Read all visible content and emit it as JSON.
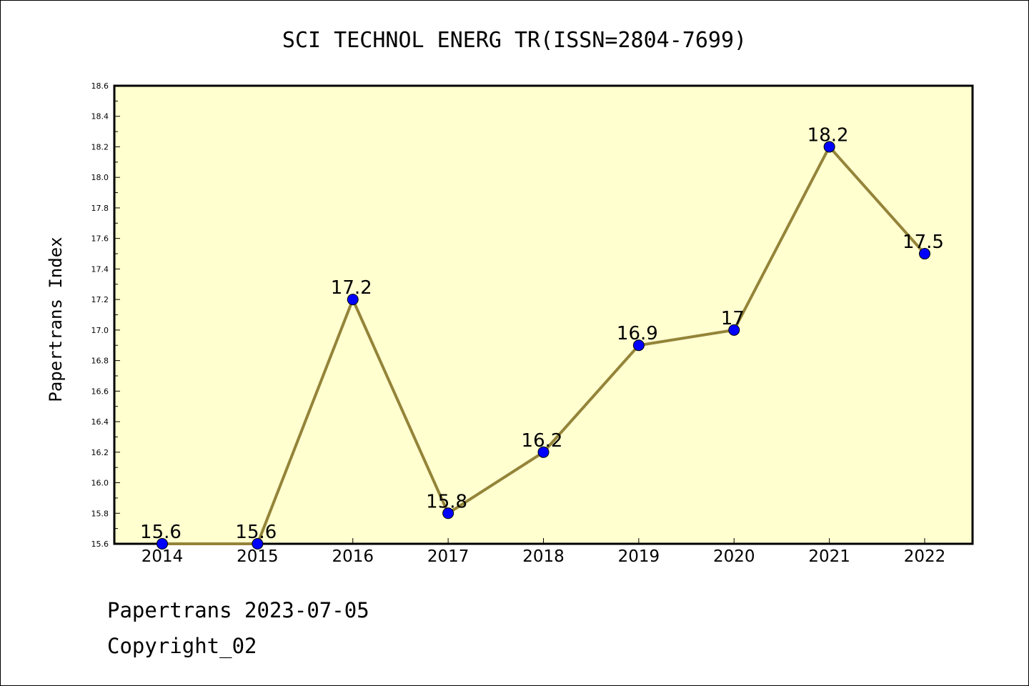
{
  "chart_data": {
    "type": "line",
    "title": "SCI TECHNOL ENERG TR(ISSN=2804-7699)",
    "xlabel": "",
    "ylabel": "Papertrans Index",
    "categories": [
      "2014",
      "2015",
      "2016",
      "2017",
      "2018",
      "2019",
      "2020",
      "2021",
      "2022"
    ],
    "values": [
      15.6,
      15.6,
      17.2,
      15.8,
      16.2,
      16.9,
      17.0,
      18.2,
      17.5
    ],
    "data_labels": [
      "15.6",
      "15.6",
      "17.2",
      "15.8",
      "16.2",
      "16.9",
      "17",
      "18.2",
      "17.5"
    ],
    "ylim": [
      15.6,
      18.6
    ],
    "yticks": [
      "15.6",
      "15.8",
      "16.0",
      "16.2",
      "16.4",
      "16.6",
      "16.8",
      "17.0",
      "17.2",
      "17.4",
      "17.6",
      "17.8",
      "18.0",
      "18.2",
      "18.4",
      "18.6"
    ],
    "grid": false,
    "colors": {
      "plot_background": "#ffffd0",
      "line": "#948439",
      "marker": "#0000ff"
    }
  },
  "footer": {
    "line1": "Papertrans 2023-07-05",
    "line2": "Copyright_02"
  }
}
